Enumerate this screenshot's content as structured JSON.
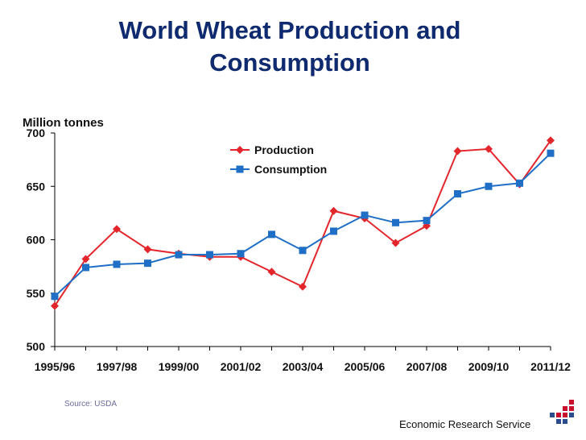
{
  "chart_data": {
    "type": "line",
    "title": "World Wheat Production and Consumption",
    "ylabel": "Million tonnes",
    "xlabel": "",
    "x": [
      "1995/96",
      "1996/97",
      "1997/98",
      "1998/99",
      "1999/00",
      "2000/01",
      "2001/02",
      "2002/03",
      "2003/04",
      "2004/05",
      "2005/06",
      "2006/07",
      "2007/08",
      "2008/09",
      "2009/10",
      "2010/11",
      "2011/12"
    ],
    "x_tick_labels": [
      "1995/96",
      "1997/98",
      "1999/00",
      "2001/02",
      "2003/04",
      "2005/06",
      "2007/08",
      "2009/10",
      "2011/12"
    ],
    "y_ticks": [
      "700",
      "650",
      "600",
      "550",
      "500"
    ],
    "ylim": [
      500,
      700
    ],
    "grid": false,
    "legend_position": "top-center",
    "series": [
      {
        "name": "Production",
        "color": "#e3262b",
        "marker": "diamond",
        "values": [
          538,
          582,
          610,
          591,
          587,
          584,
          584,
          570,
          556,
          627,
          620,
          597,
          613,
          683,
          685,
          652,
          693
        ]
      },
      {
        "name": "Consumption",
        "color": "#1f6fc6",
        "marker": "square",
        "values": [
          547,
          574,
          577,
          578,
          586,
          586,
          587,
          605,
          590,
          608,
          623,
          616,
          618,
          643,
          650,
          653,
          681
        ]
      }
    ]
  },
  "source": "Source: USDA",
  "footer": "Economic Research Service"
}
